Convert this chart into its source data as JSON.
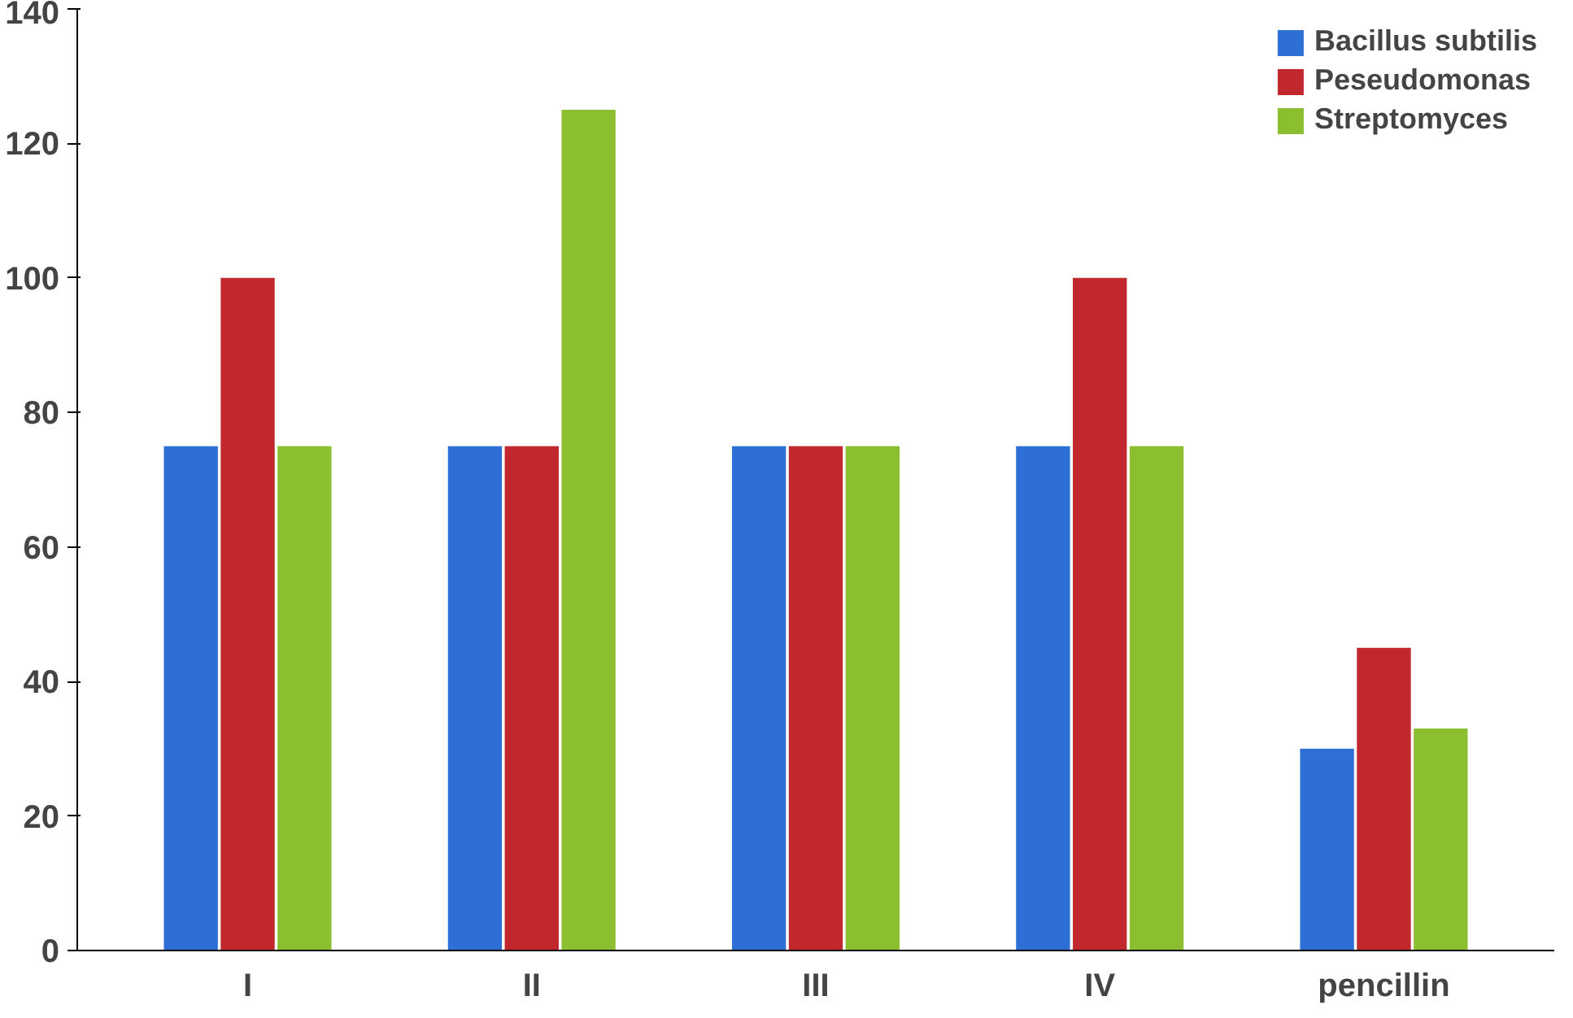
{
  "chart_data": {
    "type": "bar",
    "categories": [
      "I",
      "II",
      "III",
      "IV",
      "pencillin"
    ],
    "series": [
      {
        "name": "Bacillus subtilis",
        "color": "#2e6fd6",
        "values": [
          75,
          75,
          75,
          75,
          30
        ]
      },
      {
        "name": "Peseudomonas",
        "color": "#c0282d",
        "values": [
          100,
          75,
          75,
          100,
          45
        ]
      },
      {
        "name": "Streptomyces",
        "color": "#8cbf2f",
        "values": [
          75,
          125,
          75,
          75,
          33
        ]
      }
    ],
    "ylim": [
      0,
      140
    ],
    "yticks": [
      0,
      20,
      40,
      60,
      80,
      100,
      120,
      140
    ],
    "grid": false,
    "legend": "top right"
  }
}
